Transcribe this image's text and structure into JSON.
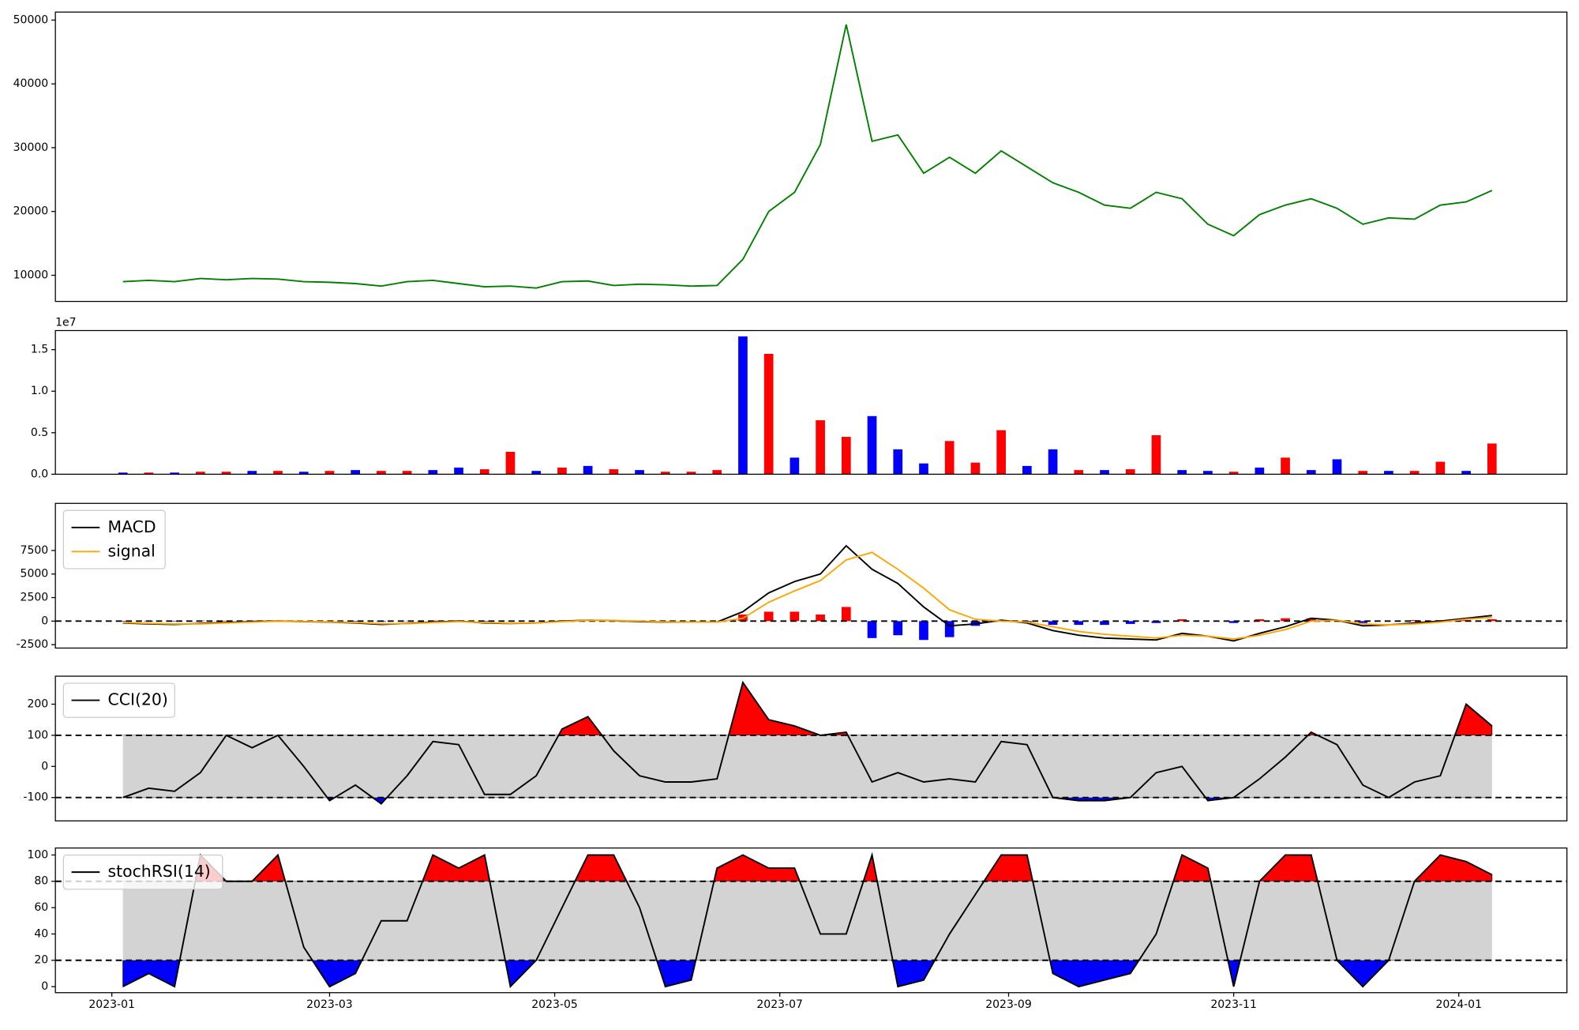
{
  "chart_data": [
    {
      "type": "line",
      "color": "green",
      "x": [
        3,
        10,
        17,
        24,
        31,
        38,
        45,
        52,
        59,
        66,
        73,
        80,
        87,
        94,
        101,
        108,
        115,
        122,
        129,
        136,
        143,
        150,
        157,
        164,
        171,
        178,
        185,
        192,
        199,
        206,
        213,
        220,
        227,
        234,
        241,
        248,
        255,
        262,
        269,
        276,
        283,
        290,
        297,
        304,
        311,
        318,
        325,
        332,
        339,
        346,
        353,
        360,
        367,
        374
      ],
      "values": [
        9000,
        9200,
        9000,
        9500,
        9300,
        9500,
        9400,
        9000,
        8900,
        8700,
        8300,
        9000,
        9200,
        8700,
        8200,
        8300,
        8000,
        9000,
        9100,
        8400,
        8600,
        8500,
        8300,
        8400,
        12500,
        20000,
        23000,
        30500,
        49300,
        31000,
        32000,
        26000,
        28500,
        26000,
        29500,
        27000,
        24500,
        23000,
        21000,
        20500,
        23000,
        22000,
        18000,
        16200,
        19500,
        21000,
        22000,
        20500,
        18000,
        19000,
        18800,
        21000,
        21500,
        23300
      ],
      "xlim": [
        -15.3,
        394.3
      ],
      "ylim": [
        5900,
        51260
      ],
      "yticks": [
        10000,
        20000,
        30000,
        40000,
        50000
      ]
    },
    {
      "type": "bar",
      "y_offset_label": "1e7",
      "x": [
        3,
        10,
        17,
        24,
        31,
        38,
        45,
        52,
        59,
        66,
        73,
        80,
        87,
        94,
        101,
        108,
        115,
        122,
        129,
        136,
        143,
        150,
        157,
        164,
        171,
        178,
        185,
        192,
        199,
        206,
        213,
        220,
        227,
        234,
        241,
        248,
        255,
        262,
        269,
        276,
        283,
        290,
        297,
        304,
        311,
        318,
        325,
        332,
        339,
        346,
        353,
        360,
        367,
        374
      ],
      "values": [
        0.02,
        0.02,
        0.02,
        0.03,
        0.03,
        0.04,
        0.04,
        0.03,
        0.04,
        0.05,
        0.04,
        0.04,
        0.05,
        0.08,
        0.06,
        0.27,
        0.04,
        0.08,
        0.1,
        0.06,
        0.05,
        0.03,
        0.03,
        0.05,
        1.66,
        1.45,
        0.2,
        0.65,
        0.45,
        0.7,
        0.3,
        0.13,
        0.4,
        0.14,
        0.53,
        0.1,
        0.3,
        0.05,
        0.05,
        0.06,
        0.47,
        0.05,
        0.04,
        0.03,
        0.08,
        0.2,
        0.05,
        0.18,
        0.04,
        0.04,
        0.04,
        0.15,
        0.04,
        0.37
      ],
      "colors": [
        "blue",
        "red",
        "blue",
        "red",
        "red",
        "blue",
        "red",
        "blue",
        "red",
        "blue",
        "red",
        "red",
        "blue",
        "blue",
        "red",
        "red",
        "blue",
        "red",
        "blue",
        "red",
        "blue",
        "red",
        "red",
        "red",
        "blue",
        "red",
        "blue",
        "red",
        "red",
        "blue",
        "blue",
        "blue",
        "red",
        "red",
        "red",
        "blue",
        "blue",
        "red",
        "blue",
        "red",
        "red",
        "blue",
        "blue",
        "red",
        "blue",
        "red",
        "blue",
        "blue",
        "red",
        "blue",
        "red",
        "red",
        "blue",
        "red"
      ],
      "xlim": [
        -15.3,
        394.3
      ],
      "ylim": [
        0,
        1.73
      ],
      "yticks": [
        {
          "value": 0,
          "label": "0.0"
        },
        {
          "value": 0.5,
          "label": "0.5"
        },
        {
          "value": 1,
          "label": "1.0"
        },
        {
          "value": 1.5,
          "label": "1.5"
        }
      ]
    },
    {
      "type": "macd",
      "legend": "upper left",
      "hlines": [
        0
      ],
      "x": [
        3,
        10,
        17,
        24,
        31,
        38,
        45,
        52,
        59,
        66,
        73,
        80,
        87,
        94,
        101,
        108,
        115,
        122,
        129,
        136,
        143,
        150,
        157,
        164,
        171,
        178,
        185,
        192,
        199,
        206,
        213,
        220,
        227,
        234,
        241,
        248,
        255,
        262,
        269,
        276,
        283,
        290,
        297,
        304,
        311,
        318,
        325,
        332,
        339,
        346,
        353,
        360,
        367,
        374
      ],
      "series": [
        {
          "name": "MACD",
          "color": "black",
          "values": [
            -200,
            -300,
            -350,
            -250,
            -150,
            -50,
            0,
            -50,
            -100,
            -200,
            -350,
            -250,
            -100,
            0,
            -200,
            -250,
            -200,
            0,
            100,
            50,
            -50,
            -100,
            -100,
            -100,
            1000,
            3000,
            4200,
            5000,
            8000,
            5500,
            4000,
            1500,
            -500,
            -300,
            100,
            -200,
            -1000,
            -1500,
            -1800,
            -1900,
            -2000,
            -1300,
            -1600,
            -2100,
            -1300,
            -600,
            300,
            100,
            -500,
            -400,
            -200,
            0,
            300,
            600
          ]
        },
        {
          "name": "signal",
          "color": "orange",
          "values": [
            -150,
            -250,
            -300,
            -300,
            -200,
            -100,
            -20,
            -30,
            -80,
            -150,
            -280,
            -280,
            -150,
            -50,
            -150,
            -230,
            -200,
            -50,
            80,
            60,
            0,
            -80,
            -100,
            -100,
            300,
            2000,
            3200,
            4300,
            6500,
            7300,
            5500,
            3500,
            1200,
            200,
            0,
            -100,
            -600,
            -1100,
            -1400,
            -1600,
            -1800,
            -1500,
            -1600,
            -1900,
            -1500,
            -900,
            0,
            100,
            -300,
            -400,
            -300,
            -100,
            200,
            400
          ]
        }
      ],
      "histogram": {
        "pos_color": "red",
        "neg_color": "blue",
        "values": [
          -50,
          -50,
          -50,
          50,
          50,
          50,
          20,
          -20,
          -20,
          -50,
          -70,
          30,
          50,
          50,
          -50,
          -20,
          0,
          50,
          20,
          -10,
          -50,
          -20,
          0,
          0,
          700,
          1000,
          1000,
          700,
          1500,
          -1800,
          -1500,
          -2000,
          -1700,
          -500,
          100,
          -100,
          -400,
          -400,
          -400,
          -300,
          -200,
          200,
          0,
          -200,
          200,
          300,
          300,
          0,
          -200,
          0,
          100,
          100,
          100,
          200
        ]
      },
      "xlim": [
        -15.3,
        394.3
      ],
      "ylim": [
        -2860,
        12500
      ],
      "yticks": [
        -2500,
        0,
        2500,
        5000,
        7500
      ]
    },
    {
      "type": "band",
      "legend": "upper left",
      "upper": 100,
      "lower": -100,
      "band_color": "lightgray",
      "upper_color": "red",
      "lower_color": "blue",
      "x": [
        3,
        10,
        17,
        24,
        31,
        38,
        45,
        52,
        59,
        66,
        73,
        80,
        87,
        94,
        101,
        108,
        115,
        122,
        129,
        136,
        143,
        150,
        157,
        164,
        171,
        178,
        185,
        192,
        199,
        206,
        213,
        220,
        227,
        234,
        241,
        248,
        255,
        262,
        269,
        276,
        283,
        290,
        297,
        304,
        311,
        318,
        325,
        332,
        339,
        346,
        353,
        360,
        367,
        374
      ],
      "series": [
        {
          "name": "CCI(20)",
          "color": "black",
          "values": [
            -100,
            -70,
            -80,
            -20,
            100,
            60,
            100,
            0,
            -110,
            -60,
            -120,
            -30,
            80,
            70,
            -90,
            -90,
            -30,
            120,
            160,
            50,
            -30,
            -50,
            -50,
            -40,
            270,
            150,
            130,
            100,
            110,
            -50,
            -20,
            -50,
            -40,
            -50,
            80,
            70,
            -100,
            -110,
            -110,
            -100,
            -20,
            0,
            -110,
            -100,
            -40,
            30,
            110,
            70,
            -60,
            -100,
            -50,
            -30,
            200,
            130
          ]
        }
      ],
      "xlim": [
        -15.3,
        394.3
      ],
      "ylim": [
        -175,
        290
      ],
      "yticks": [
        -100,
        0,
        100,
        200
      ]
    },
    {
      "type": "band",
      "legend": "upper left",
      "upper": 80,
      "lower": 20,
      "band_color": "lightgray",
      "upper_color": "red",
      "lower_color": "blue",
      "x": [
        3,
        10,
        17,
        24,
        31,
        38,
        45,
        52,
        59,
        66,
        73,
        80,
        87,
        94,
        101,
        108,
        115,
        122,
        129,
        136,
        143,
        150,
        157,
        164,
        171,
        178,
        185,
        192,
        199,
        206,
        213,
        220,
        227,
        234,
        241,
        248,
        255,
        262,
        269,
        276,
        283,
        290,
        297,
        304,
        311,
        318,
        325,
        332,
        339,
        346,
        353,
        360,
        367,
        374
      ],
      "series": [
        {
          "name": "stochRSI(14)",
          "color": "black",
          "values": [
            0,
            10,
            0,
            100,
            80,
            80,
            100,
            30,
            0,
            10,
            50,
            50,
            100,
            90,
            100,
            0,
            20,
            60,
            100,
            100,
            60,
            0,
            5,
            90,
            100,
            90,
            90,
            40,
            40,
            100,
            0,
            5,
            40,
            70,
            100,
            100,
            10,
            0,
            5,
            10,
            40,
            100,
            90,
            0,
            80,
            100,
            100,
            20,
            0,
            20,
            80,
            100,
            95,
            85
          ]
        }
      ],
      "xlim": [
        -15.3,
        394.3
      ],
      "ylim": [
        -4.6,
        105.3
      ],
      "yticks": [
        0,
        20,
        40,
        60,
        80,
        100
      ],
      "xticks": [
        {
          "value": 0,
          "label": "2023-01"
        },
        {
          "value": 59,
          "label": "2023-03"
        },
        {
          "value": 120,
          "label": "2023-05"
        },
        {
          "value": 181,
          "label": "2023-07"
        },
        {
          "value": 243,
          "label": "2023-09"
        },
        {
          "value": 304,
          "label": "2023-11"
        },
        {
          "value": 365,
          "label": "2024-01"
        }
      ]
    }
  ]
}
